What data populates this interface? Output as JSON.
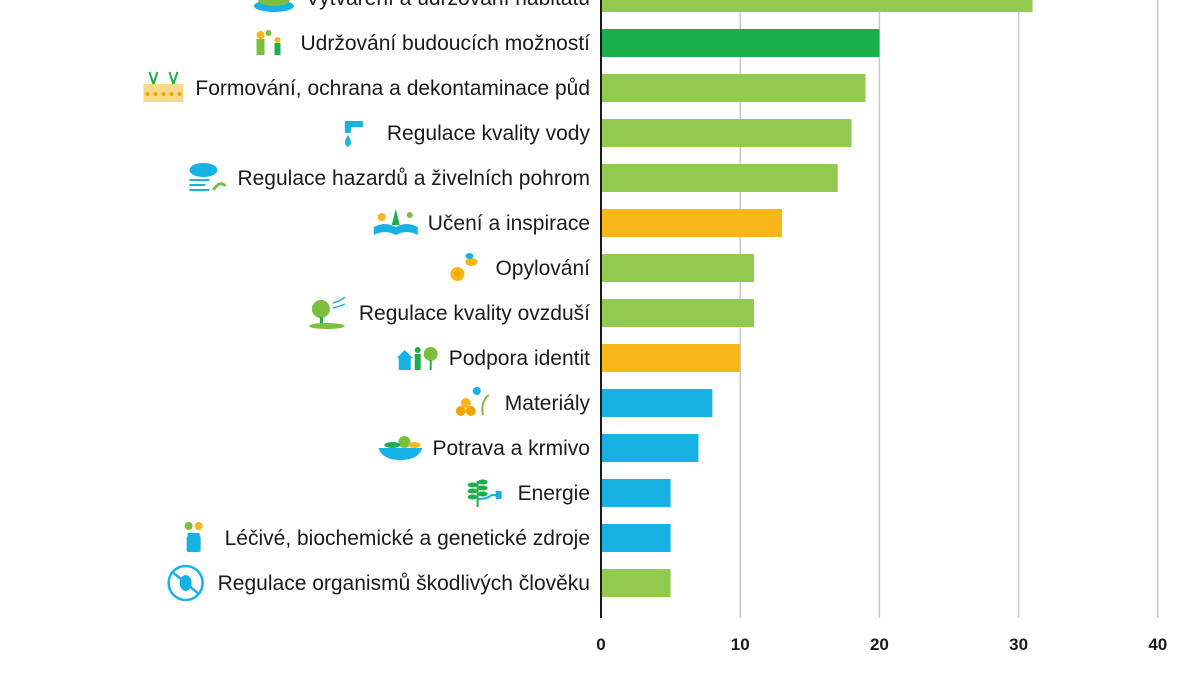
{
  "chart_data": {
    "type": "bar",
    "orientation": "horizontal",
    "categories": [
      "Vytváření a udržování habitatů",
      "Udržování budoucích možností",
      "Formování, ochrana a dekontaminace půd",
      "Regulace kvality vody",
      "Regulace hazardů a živelních pohrom",
      "Učení a inspirace",
      "Opylování",
      "Regulace kvality ovzduší",
      "Podpora identit",
      "Materiály",
      "Potrava a krmivo",
      "Energie",
      "Léčivé, biochemické a genetické zdroje",
      "Regulace organismů škodlivých člověku"
    ],
    "values": [
      31,
      20,
      19,
      18,
      17,
      13,
      11,
      11,
      10,
      8,
      7,
      5,
      5,
      5
    ],
    "bar_colors": [
      "#92c94f",
      "#1aaf4b",
      "#92c94f",
      "#92c94f",
      "#92c94f",
      "#f7b718",
      "#92c94f",
      "#92c94f",
      "#f7b718",
      "#18b1e3",
      "#18b1e3",
      "#18b1e3",
      "#18b1e3",
      "#92c94f"
    ],
    "icons": [
      "habitat-icon",
      "people-plant-icon",
      "soil-roots-icon",
      "water-tap-icon",
      "storm-cloud-icon",
      "book-nature-icon",
      "bee-flower-icon",
      "tree-wind-icon",
      "house-person-tree-icon",
      "logs-plant-icon",
      "food-bowl-icon",
      "plant-plug-icon",
      "medicine-jar-icon",
      "pest-crossed-icon"
    ],
    "xticks": [
      0,
      10,
      20,
      30,
      40
    ],
    "xlim": [
      0,
      40
    ],
    "grid": true,
    "title": "",
    "xlabel": "",
    "ylabel": "",
    "colors": {
      "regulating": "#92c94f",
      "future_options": "#1aaf4b",
      "nonmaterial": "#f7b718",
      "material": "#18b1e3",
      "gridline": "#c8c8c8",
      "axis": "#1a1a1a"
    }
  }
}
